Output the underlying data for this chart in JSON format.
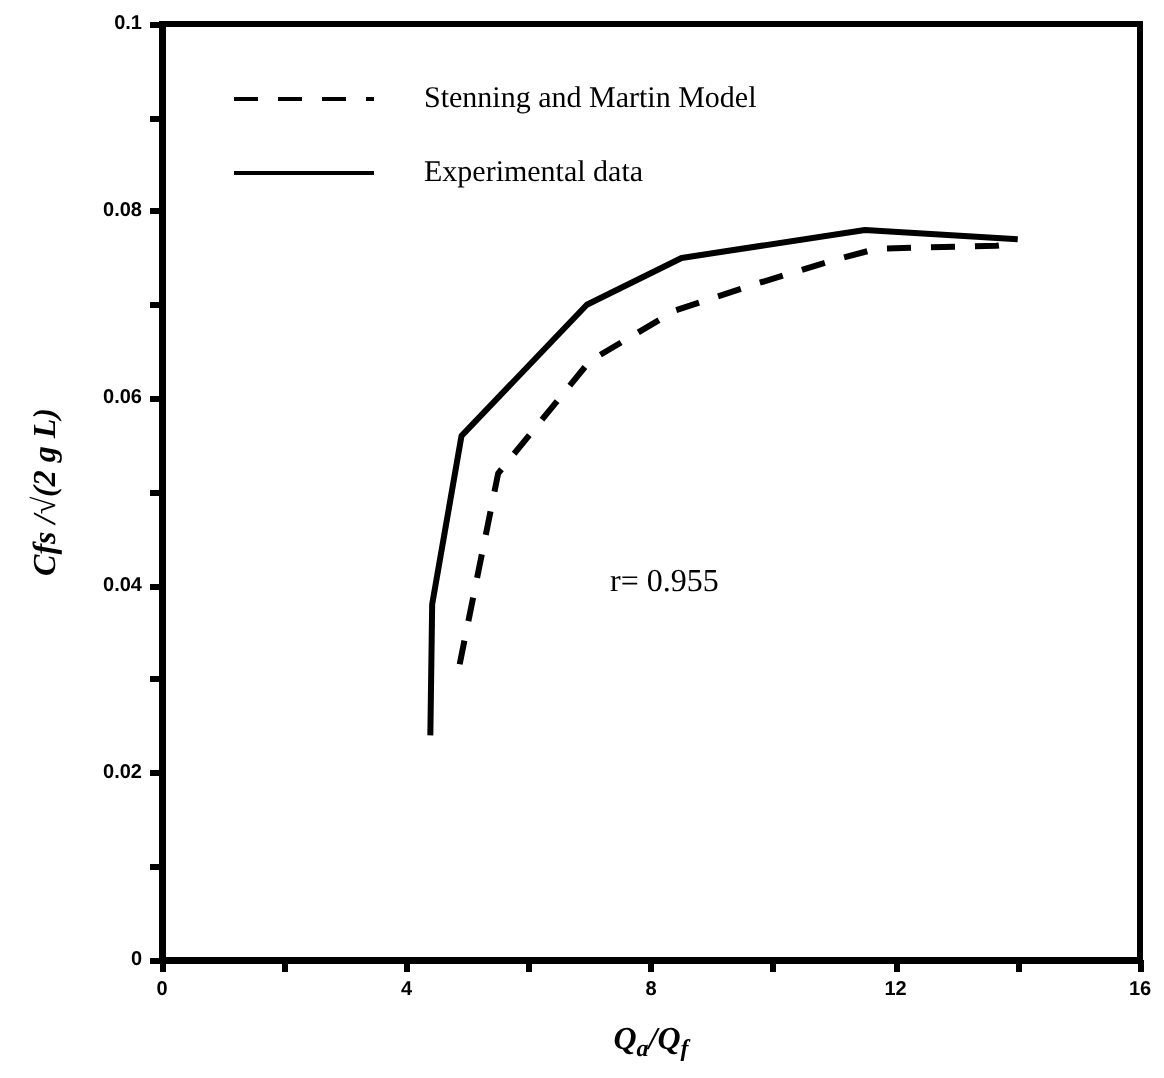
{
  "chart_data": {
    "type": "line",
    "xlabel": "Q$_{a}$/Q$_{f}$",
    "ylabel": "Cfs /√(2 g L)",
    "annotations": [
      "r= 0.955"
    ],
    "xlim": [
      0,
      16
    ],
    "xticks": [
      0,
      {
        "value": 2,
        "label": null
      },
      4,
      {
        "value": 6,
        "label": null
      },
      8,
      {
        "value": 10,
        "label": null
      },
      12,
      {
        "value": 14,
        "label": null
      },
      16
    ],
    "ylim": [
      0,
      0.1
    ],
    "yticks": [
      0,
      {
        "value": 0.01,
        "label": null
      },
      0.02,
      {
        "value": 0.03,
        "label": null
      },
      0.04,
      {
        "value": 0.05,
        "label": null
      },
      0.06,
      {
        "value": 0.07,
        "label": null
      },
      0.08,
      {
        "value": 0.09,
        "label": null
      },
      0.1
    ],
    "grid": false,
    "legend": "top left",
    "marker": "none",
    "series": [
      {
        "name": "Stenning and Martin Model",
        "color": "#000000",
        "line_style": "dashed",
        "x": [
          4.87,
          5.5,
          6.0,
          7.0,
          8.4,
          9.7,
          11.0,
          11.7,
          13.65,
          14.0
        ],
        "values": [
          0.0316,
          0.052,
          0.056,
          0.064,
          0.0694,
          0.0722,
          0.0748,
          0.076,
          0.0763,
          0.0766
        ]
      },
      {
        "name": "Experimental data",
        "color": "#000000",
        "line_style": "solid",
        "x": [
          4.39,
          4.42,
          4.9,
          6.95,
          8.5,
          11.5,
          14.0
        ],
        "values": [
          0.024,
          0.038,
          0.056,
          0.07,
          0.075,
          0.078,
          0.077
        ]
      }
    ]
  }
}
